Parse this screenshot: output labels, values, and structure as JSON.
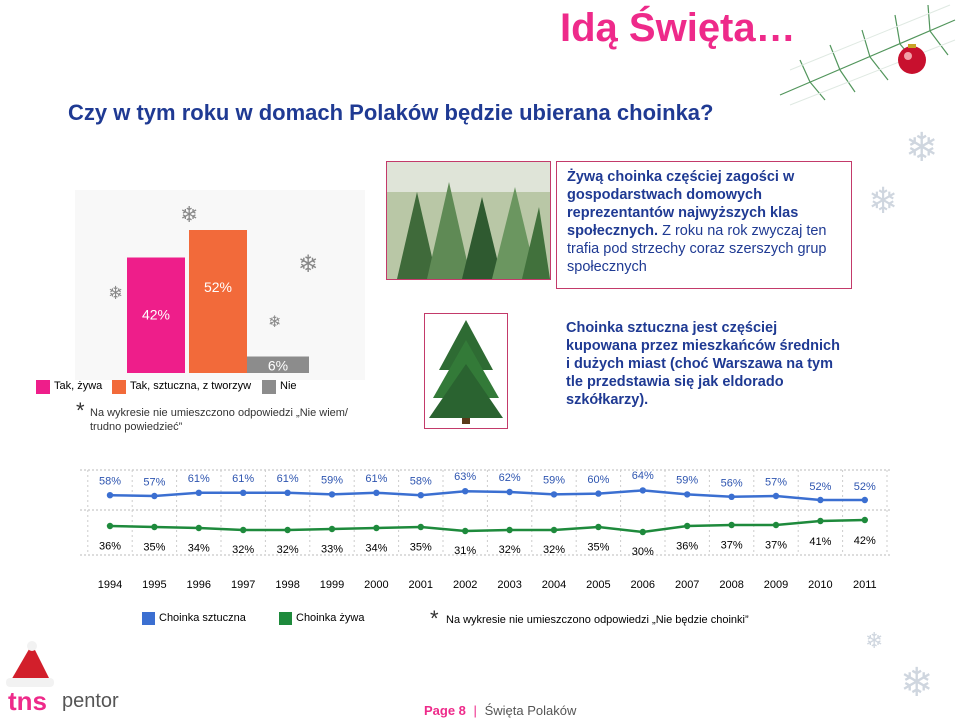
{
  "header": {
    "title": "Idą Święta…",
    "question": "Czy w tym roku w domach Polaków będzie ubierana choinka?"
  },
  "bar_chart": {
    "type": "bar",
    "categories": [
      "Tak, żywa",
      "Tak, sztuczna, z tworzyw",
      "Nie"
    ],
    "values": [
      42,
      52,
      6
    ],
    "value_labels": [
      "42%",
      "52%",
      "6%"
    ],
    "colors": [
      "#ee1e8a",
      "#f26a3a",
      "#8c8c8c"
    ],
    "ylim": [
      0,
      60
    ],
    "note_star": "*",
    "note": "Na wykresie nie umieszczono odpowiedzi „Nie wiem/ trudno powiedzieć”"
  },
  "info_boxes": {
    "live_tree_text_bold": "Żywą choinka częściej zagości w gospodarstwach domowych reprezentantów najwyższych klas społecznych.",
    "live_tree_text_plain": "Z roku na rok zwyczaj ten trafia pod strzechy coraz szerszych grup społecznych",
    "artificial_tree_text": "Choinka sztuczna jest częściej kupowana przez mieszkańców średnich i dużych miast (choć Warszawa na tym tle przedstawia się jak eldorado szkółkarzy)."
  },
  "chart_data": {
    "type": "line",
    "x": [
      "1994",
      "1995",
      "1996",
      "1997",
      "1998",
      "1999",
      "2000",
      "2001",
      "2002",
      "2003",
      "2004",
      "2005",
      "2006",
      "2007",
      "2008",
      "2009",
      "2010",
      "2011"
    ],
    "series": [
      {
        "name": "Choinka sztuczna",
        "color": "#3b6fd1",
        "values": [
          58,
          57,
          61,
          61,
          61,
          59,
          61,
          58,
          63,
          62,
          59,
          60,
          64,
          59,
          56,
          57,
          52,
          52
        ],
        "labels": [
          "58%",
          "57%",
          "61%",
          "61%",
          "61%",
          "59%",
          "61%",
          "58%",
          "63%",
          "62%",
          "59%",
          "60%",
          "64%",
          "59%",
          "56%",
          "57%",
          "52%",
          "52%"
        ]
      },
      {
        "name": "Choinka żywa",
        "color": "#1e8a3c",
        "values": [
          36,
          35,
          34,
          32,
          32,
          33,
          34,
          35,
          31,
          32,
          32,
          35,
          30,
          36,
          37,
          37,
          41,
          42
        ],
        "labels": [
          "36%",
          "35%",
          "34%",
          "32%",
          "32%",
          "33%",
          "34%",
          "35%",
          "31%",
          "32%",
          "32%",
          "35%",
          "30%",
          "36%",
          "37%",
          "37%",
          "41%",
          "42%"
        ]
      }
    ],
    "note_star": "*",
    "note": "Na wykresie nie umieszczono odpowiedzi „Nie będzie choinki”"
  },
  "footer": {
    "page": "Page 8",
    "separator": "|",
    "section": "Święta Polaków"
  },
  "logo": {
    "brand": "tns",
    "sub": "pentor"
  }
}
